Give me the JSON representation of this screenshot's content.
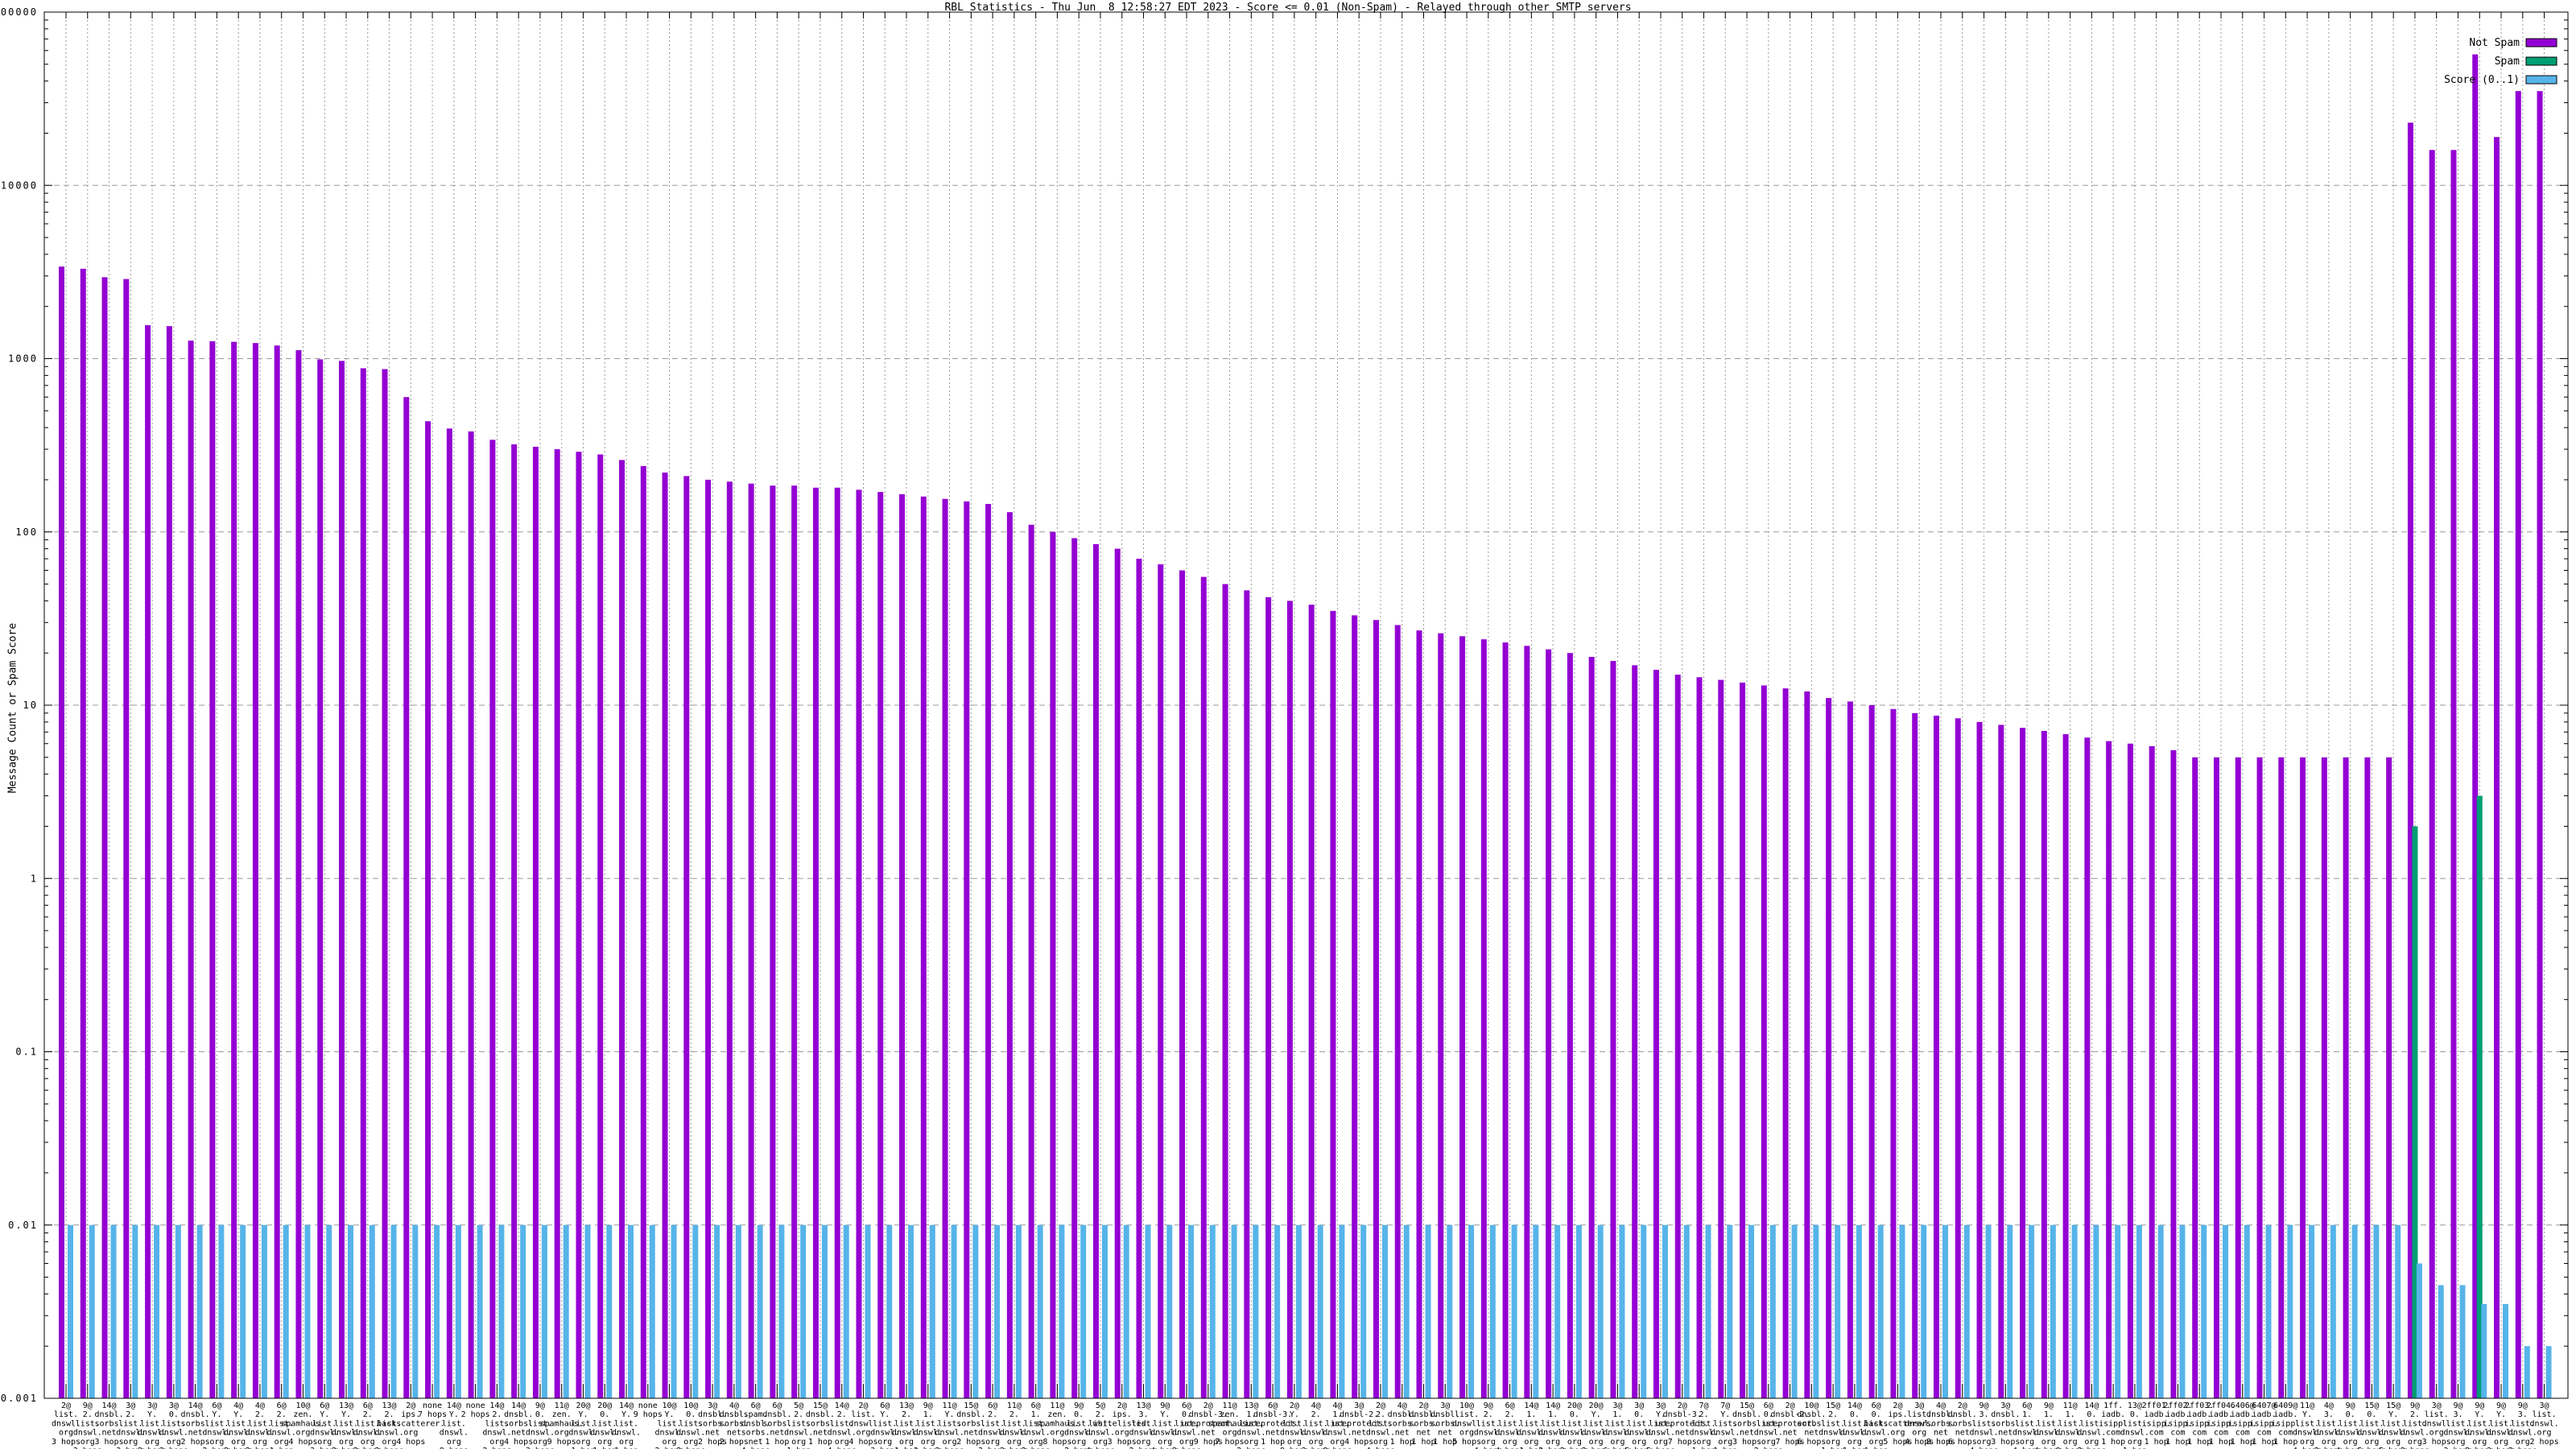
{
  "title": "RBL Statistics - Thu Jun  8 12:58:27 EDT 2023 - Score <= 0.01 (Non-Spam) - Relayed through other SMTP servers",
  "y_axis": {
    "label": "Message Count or Spam Score",
    "ticks": [
      "100000",
      "10000",
      "1000",
      "100",
      "10",
      "1",
      "0.1",
      "0.01",
      "0.001"
    ]
  },
  "legend": [
    {
      "label": "Not Spam",
      "color": "#9400d3"
    },
    {
      "label": "Spam",
      "color": "#009e73"
    },
    {
      "label": "Score (0..1)",
      "color": "#56b4e9"
    }
  ],
  "colors": {
    "not_spam": "#9400d3",
    "spam": "#009e73",
    "score": "#56b4e9",
    "grid": "#9a9a9a",
    "axis": "#000000"
  },
  "chart_data": {
    "type": "bar",
    "scale": "log",
    "ylim": [
      0.001,
      100000
    ],
    "ylabel": "Message Count or Spam Score",
    "grid": true,
    "legend_position": "top-right",
    "series_names": [
      "Not Spam",
      "Spam",
      "Score (0..1)"
    ],
    "categories": [
      "2@list.dnswl.org 3 hops",
      "9@2.list.dnswl.org 3 hops",
      "14@dnsbl.sorbs.net 3 hops",
      "3@2.list.dnswl.org 3 hops",
      "3@Y.list.dnswl.org 3 hops",
      "3@0.list.dnswl.org 3 hops",
      "14@dnsbl.sorbs.net 2 hops",
      "6@Y.list.dnswl.org 2 hops",
      "4@Y.list.dnswl.org 2 hops",
      "4@2.list.dnswl.org 2 hops",
      "6@2.list.dnswl.org 1 hop",
      "10@zen.spamhaus.org 4 hops",
      "6@Y.list.dnswl.org 3 hops",
      "13@Y.list.dnswl.org 2 hops",
      "6@2.list.dnswl.org 2 hops",
      "13@2.list.dnswl.org 2 hops",
      "2@ips.backscatterer.org 4 hops",
      "none 7 hops",
      "14@Y.list.dnswl.org 8 hops",
      "none 2 hops",
      "14@2.list.dnswl.org 2 hops",
      "14@dnsbl.sorbs.net 4 hops",
      "9@0.list.dnswl.org 3 hops",
      "11@zen.spamhaus.org 9 hops",
      "20@Y.list.dnswl.org 1 hop",
      "20@0.list.dnswl.org 1 hop",
      "14@Y.list.dnswl.org 1 hop",
      "none 9 hops",
      "10@Y.list.dnswl.org 2 hops",
      "10@0.list.dnswl.org 2 hops",
      "3@dnsbl.sorbs.net 2 hops",
      "4@dnsbl.sorbs.net 2 hops",
      "6@spam.dnsbl.sorbs.net 4 hops",
      "6@dnsbl.sorbs.net 1 hop",
      "5@2.list.dnswl.org 1 hop",
      "15@dnsbl.sorbs.net 1 hop",
      "14@2.list.dnswl.org 4 hops",
      "2@list.dnswl.org 4 hops",
      "6@Y.list.dnswl.org 3 hops",
      "13@2.list.dnswl.org 1 hop",
      "9@1.list.dnswl.org 3 hops",
      "11@Y.list.dnswl.org 3 hops",
      "15@dnsbl.sorbs.net 2 hops",
      "6@2.list.dnswl.org 3 hops",
      "11@2.list.dnswl.org 3 hops",
      "6@1.list.dnswl.org 2 hops",
      "11@zen.spamhaus.org 8 hops",
      "9@0.list.dnswl.org 2 hops",
      "5@2.list.dnswl.org 4 hops",
      "2@ips.whitelisted.org 3 hops",
      "13@3.list.dnswl.org 2 hops",
      "9@Y.list.dnswl.org 4 hops",
      "6@0.list.dnswl.org 2 hops",
      "2@dnsbl-3.uceprotect.net 9 hops",
      "11@zen.spamhaus.org 7 hops",
      "13@1.list.dnswl.org 2 hops",
      "6@dnsbl-3.uceprotect.net 1 hop",
      "2@Y.list.dnswl.org 8 hops",
      "4@2.list.dnswl.org 3 hops",
      "4@1.list.dnswl.org 8 hops",
      "3@dnsbl-2.uceprotect.net 4 hops",
      "2@2.list.dnswl.org 4 hops",
      "4@dnsbl.sorbs.net 1 hop",
      "2@dnsbl.sorbs.net 1 hop",
      "3@dnsbl.sorbs.net 1 hop",
      "10@list.dnswl.org 5 hops",
      "9@2.list.dnswl.org 4 hops",
      "6@2.list.dnswl.org 4 hops",
      "14@1.list.dnswl.org 1 hop",
      "14@1.list.dnswl.org 2 hops",
      "20@0.list.dnswl.org 2 hops",
      "20@Y.list.dnswl.org 2 hops",
      "3@1.list.dnswl.org 6 hops",
      "3@0.list.dnswl.org 5 hops",
      "3@Y.list.dnswl.org 5 hops",
      "2@dnsbl-3.uceprotect.net 7 hops",
      "7@2.list.dnswl.org 1 hop",
      "7@Y.list.dnswl.org 1 hop",
      "15@dnsbl.sorbs.net 3 hops",
      "6@0.list.dnswl.org 2 hops",
      "2@dnsbl-2.uceprotect.net 7 hops",
      "10@dnsbl.sorbs.net 6 hops",
      "15@2.list.dnswl.org 1 hop",
      "14@0.list.dnswl.org 1 hop",
      "6@0.list.dnswl.org 1 hop",
      "2@ips.backscatterer.org 5 hops",
      "3@list.dnswl.org 4 hops",
      "4@dnsbl.sorbs.net 8 hops",
      "2@dnsbl.sorbs.net 6 hops",
      "9@3.list.dnswl.org 4 hops",
      "3@dnsbl.sorbs.net 3 hops",
      "6@1.list.dnswl.org 4 hops",
      "9@1.list.dnswl.org 4 hops",
      "11@1.list.dnswl.org 8 hops",
      "14@0.list.dnswl.org 2 hops",
      "1ff.iadb.isipp.com 1 hop",
      "13@0.list.dnswl.org 1 hop",
      "2ff01.iadb.isipp.com 1 hop",
      "2ff02.iadb.isipp.com 1 hop",
      "2ff03.iadb.isipp.com 1 hop",
      "2ff04.iadb.isipp.com 1 hop",
      "6406@iadb.isipp.com 1 hop",
      "6407@iadb.isipp.com 1 hop",
      "6409@iadb.isipp.com 1 hop",
      "11@Y.list.dnswl.org 4 hops",
      "4@3.list.dnswl.org 2 hops",
      "9@0.list.dnswl.org 4 hops",
      "15@0.list.dnswl.org 5 hops",
      "15@Y.list.dnswl.org 5 hops",
      "9@2.list.dnswl.org 2 hops",
      "3@list.dnswl.org 3 hops",
      "9@3.list.dnswl.org 3 hops",
      "9@Y.list.dnswl.org 2 hops",
      "9@Y.list.dnswl.org 3 hops",
      "9@3.list.dnswl.org 2 hops",
      "3@list.dnswl.org 2 hops"
    ],
    "series": [
      {
        "name": "Not Spam",
        "values": [
          3400,
          3300,
          2950,
          2880,
          1560,
          1540,
          1270,
          1260,
          1250,
          1230,
          1190,
          1120,
          990,
          970,
          880,
          870,
          600,
          435,
          395,
          380,
          340,
          320,
          310,
          300,
          290,
          280,
          260,
          240,
          220,
          210,
          200,
          195,
          190,
          185,
          185,
          180,
          180,
          175,
          170,
          165,
          160,
          155,
          150,
          145,
          130,
          110,
          100,
          92,
          85,
          80,
          70,
          65,
          60,
          55,
          50,
          46,
          42,
          40,
          38,
          35,
          33,
          31,
          29,
          27,
          26,
          25,
          24,
          23,
          22,
          21,
          20,
          19,
          18,
          17,
          16,
          15,
          14.5,
          14,
          13.5,
          13,
          12.5,
          12,
          11,
          10.5,
          10,
          9.5,
          9,
          8.7,
          8.4,
          8,
          7.7,
          7.4,
          7.1,
          6.8,
          6.5,
          6.2,
          6,
          5.8,
          5.5,
          5,
          5,
          5,
          5,
          5,
          5,
          5,
          5,
          5,
          5,
          23000,
          16000,
          16000,
          57000,
          19000,
          35000,
          35000
        ]
      },
      {
        "name": "Spam",
        "values": [
          0,
          0,
          0,
          0,
          0,
          0,
          0,
          0,
          0,
          0,
          0,
          0,
          0,
          0,
          0,
          0,
          0,
          0,
          0,
          0,
          0,
          0,
          0,
          0,
          0,
          0,
          0,
          0,
          0,
          0,
          0,
          0,
          0,
          0,
          0,
          0,
          0,
          0,
          0,
          0,
          0,
          0,
          0,
          0,
          0,
          0,
          0,
          0,
          0,
          0,
          0,
          0,
          0,
          0,
          0,
          0,
          0,
          0,
          0,
          0,
          0,
          0,
          0,
          0,
          0,
          0,
          0,
          0,
          0,
          0,
          0,
          0,
          0,
          0,
          0,
          0,
          0,
          0,
          0,
          0,
          0,
          0,
          0,
          0,
          0,
          0,
          0,
          0,
          0,
          0,
          0,
          0,
          0,
          0,
          0,
          0,
          0,
          0,
          0,
          0,
          0,
          0,
          0,
          0,
          0,
          0,
          0,
          0,
          0,
          2,
          0,
          0,
          3,
          0,
          0,
          0
        ]
      },
      {
        "name": "Score (0..1)",
        "values": [
          0.01,
          0.01,
          0.01,
          0.01,
          0.01,
          0.01,
          0.01,
          0.01,
          0.01,
          0.01,
          0.01,
          0.01,
          0.01,
          0.01,
          0.01,
          0.01,
          0.01,
          0.01,
          0.01,
          0.01,
          0.01,
          0.01,
          0.01,
          0.01,
          0.01,
          0.01,
          0.01,
          0.01,
          0.01,
          0.01,
          0.01,
          0.01,
          0.01,
          0.01,
          0.01,
          0.01,
          0.01,
          0.01,
          0.01,
          0.01,
          0.01,
          0.01,
          0.01,
          0.01,
          0.01,
          0.01,
          0.01,
          0.01,
          0.01,
          0.01,
          0.01,
          0.01,
          0.01,
          0.01,
          0.01,
          0.01,
          0.01,
          0.01,
          0.01,
          0.01,
          0.01,
          0.01,
          0.01,
          0.01,
          0.01,
          0.01,
          0.01,
          0.01,
          0.01,
          0.01,
          0.01,
          0.01,
          0.01,
          0.01,
          0.01,
          0.01,
          0.01,
          0.01,
          0.01,
          0.01,
          0.01,
          0.01,
          0.01,
          0.01,
          0.01,
          0.01,
          0.01,
          0.01,
          0.01,
          0.01,
          0.01,
          0.01,
          0.01,
          0.01,
          0.01,
          0.01,
          0.01,
          0.01,
          0.01,
          0.01,
          0.01,
          0.01,
          0.01,
          0.01,
          0.01,
          0.01,
          0.01,
          0.01,
          0.01,
          0.006,
          0.0045,
          0.0045,
          0.0035,
          0.0035,
          0.002,
          0.002
        ]
      }
    ]
  }
}
